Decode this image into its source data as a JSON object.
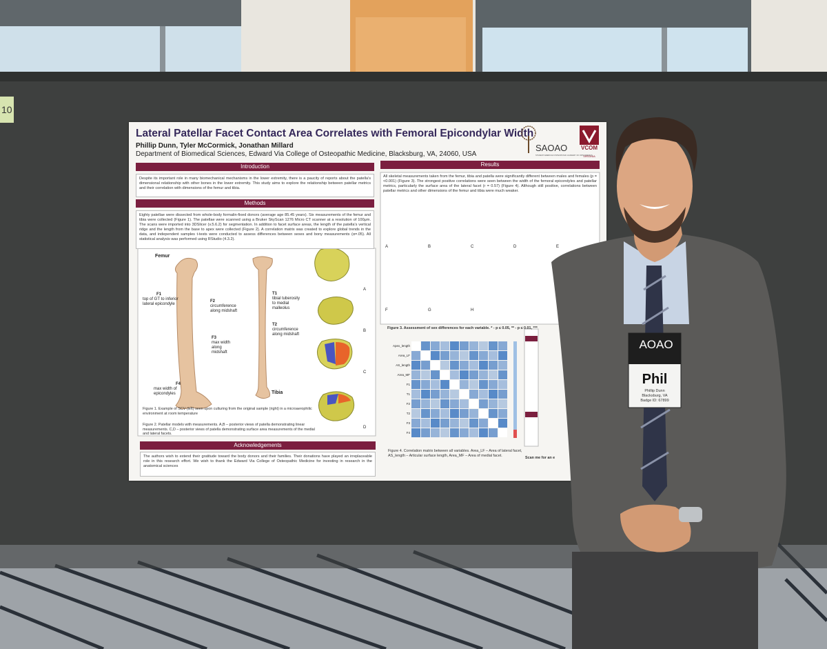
{
  "booth_sign": "10",
  "poster": {
    "title": "Lateral Patellar Facet Contact Area Correlates with Femoral Epicondylar Width",
    "authors": "Phillip Dunn, Tyler McCormick, Jonathan Millard",
    "affiliation": "Department of Biomedical Sciences, Edward Via College of Osteopathic Medicine, Blacksburg, VA, 24060, USA",
    "logos": {
      "saoao": "SAOAO",
      "saoao_sub": "STUDENT AMERICAN OSTEOPATHIC ACADEMY OF ORTHOPEDICS",
      "vcom": "VCOM",
      "vcom_sub": "VIRGINIA"
    },
    "introduction": {
      "heading": "Introduction",
      "text": "Despite its important role in many biomechanical mechanisms in the lower extremity, there is a paucity of reports about the patella's dimensional relationship with other bones in the lower extremity. This study aims to explore the relationship between patellar metrics and their correlation with dimensions of the femur and tibia."
    },
    "methods": {
      "heading": "Methods",
      "text": "Eighty patellae were dissected from whole-body formalin-fixed donors (average age 85.45 years). Six measurements of the femur and tibia were collected (Figure 1). The patellae were scanned using a Bruker SkyScan 1276 Micro CT scanner at a resolution of 100μm. The scans were imported into 3DSlicer (v.5.6.2) for segmentation. In addition to facet surface areas, the length of the patella's vertical ridge and the length from the base to apex were collected (Figure 2). A correlation matrix was created to explore global trends in the data, and independent samples t-tests were conducted to assess differences between sexes and bony measurements (α=.05). All statistical analysis was performed using RStudio (4.3.2).",
      "femur": "Femur",
      "tibia": "Tibia",
      "f1": "F1",
      "f1_text": "top of GT to inferior lateral epicondyle",
      "f2": "F2",
      "f2_text": "circumference along midshaft",
      "f3": "F3",
      "f3_text": "max width along midshaft",
      "f4": "F4",
      "f4_text": "max width of epicondyles",
      "t1": "T1",
      "t1_text": "tibial tuberosity to medial malleolus",
      "t2": "T2",
      "t2_text": "circumference along midshaft",
      "patella_letters": [
        "A",
        "B",
        "C",
        "D"
      ],
      "figure1": "Figure 1. Example of SCV (left) seen upon culturing from the original sample (right) in a microaerophilic environment at room temperature",
      "figure2": "Figure 2. Patellar models with measurements. A,B – posterior views of patella demonstrating linear measurements. C,D – posterior views of patella demonstrating surface area measurements of the medial and lateral facets."
    },
    "acknowledgements": {
      "heading": "Acknowledgements",
      "text": "The authors wish to extend their gratitude toward the body donors and their families. Their donations have played an irreplaceable role in this research effort. We wish to thank the Edward Via College of Osteopathic Medicine for investing in research in the anatomical sciences"
    },
    "results": {
      "heading": "Results",
      "text": "All skeletal measurements taken from the femur, tibia and patella were significantly different between males and females (p = <0.001) (Figure 3). The strongest positive correlations were seen between the width of the femoral epicondyles and patellar metrics, particularly the surface area of the lateral facet (r = 0.57) (Figure 4). Although still positive, correlations between patellar metrics and other dimensions of the femur and tibia were much weaker.",
      "violin_letters": [
        "A",
        "B",
        "C",
        "D",
        "E",
        "F",
        "G",
        "H"
      ],
      "figure3": "Figure 3. Assessment of sex differences for each variable. * - p ≤ 0.05, ** - p ≤ 0.01, ***",
      "matrix_labels": [
        "Apex_length",
        "Area_LF",
        "AS_length",
        "Area_MF",
        "F1",
        "T1",
        "F2",
        "T2",
        "F3",
        "F4"
      ],
      "figure4": "Figure 4. Correlation matrix between all variables. Area_LF – Area of lateral facet, AS_length – Articular surface length, Area_MF – Area of medial facet.",
      "scan": "Scan me for an e"
    }
  },
  "badge": {
    "org": "AOAO",
    "name": "Phil",
    "full_name": "Phillip Dunn",
    "location": "Blacksburg, VA",
    "badge_id": "Badge ID: 67899"
  }
}
